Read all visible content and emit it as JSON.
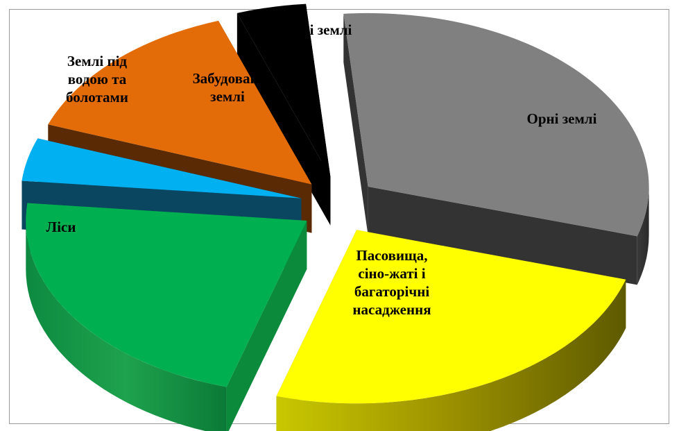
{
  "chart_data": {
    "type": "pie",
    "style": "3d-exploded",
    "title": "",
    "slices": [
      {
        "label": "Орні землі",
        "value": 31,
        "color": "#808080"
      },
      {
        "label": "Пасовища, сіно-жаті і багаторічні насадження",
        "value": 25,
        "color": "#ffff00"
      },
      {
        "label": "Ліси",
        "value": 22,
        "color": "#00b050"
      },
      {
        "label": "Землі під водою та болотами",
        "value": 4,
        "color": "#00b0f0"
      },
      {
        "label": "Забудовані землі",
        "value": 14,
        "color": "#e36c09"
      },
      {
        "label": "Інші землі",
        "value": 4,
        "color": "#000000"
      }
    ]
  }
}
